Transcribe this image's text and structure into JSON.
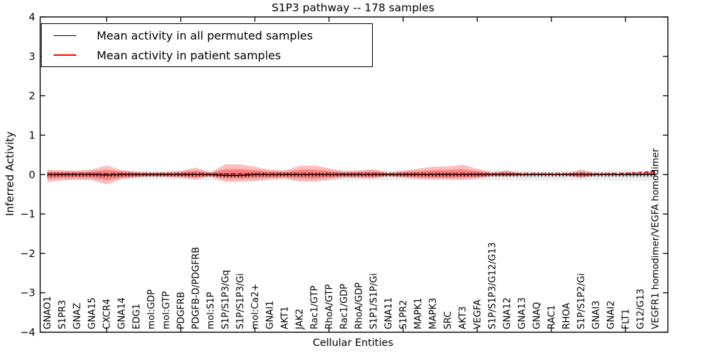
{
  "title": "S1P3 pathway -- 178 samples",
  "legend": [
    {
      "label": "Mean activity in all permuted samples",
      "color": "#000000"
    },
    {
      "label": "Mean activity in patient samples",
      "color": "#ff0000"
    }
  ],
  "colors": {
    "patient_line": "#ff0000",
    "permuted_line": "#000000",
    "patient_band": "#ff0000",
    "permuted_band": "#999999",
    "axis": "#000000"
  },
  "chart_data": {
    "type": "line",
    "title": "S1P3 pathway -- 178 samples",
    "xlabel": "Cellular Entities",
    "ylabel": "Inferred Activity",
    "ylim": [
      -4,
      4
    ],
    "yticks": [
      -4,
      -3,
      -2,
      -1,
      0,
      1,
      2,
      3,
      4
    ],
    "grid": false,
    "legend_position": "upper left",
    "categories": [
      "GNAO1",
      "S1PR3",
      "GNAZ",
      "GNA15",
      "CXCR4",
      "GNA14",
      "EDG1",
      "mol:GDP",
      "mol:GTP",
      "PDGFRB",
      "PDGFB-D/PDGFRB",
      "mol:S1P",
      "S1P/S1P3/Gq",
      "S1P/S1P3/Gi",
      "mol:Ca2+",
      "GNAI1",
      "AKT1",
      "JAK2",
      "Rac1/GTP",
      "RhoA/GTP",
      "Rac1/GDP",
      "RhoA/GDP",
      "S1P1/S1P/Gi",
      "GNA11",
      "S1PR2",
      "MAPK1",
      "MAPK3",
      "SRC",
      "AKT3",
      "VEGFA",
      "S1P/S1P3/G12/G13",
      "GNA12",
      "GNA13",
      "GNAQ",
      "RAC1",
      "RHOA",
      "S1P/S1P2/Gi",
      "GNAI3",
      "GNAI2",
      "FLT1",
      "G12/G13",
      "VEGFR1 homodimer/VEGFA homodimer"
    ],
    "top_tick_indices": [
      4,
      9,
      14,
      19,
      24,
      29,
      34,
      39
    ],
    "series": [
      {
        "name": "Mean activity in all permuted samples",
        "color": "#000000",
        "values": [
          0,
          0,
          0,
          0,
          -0.01,
          0,
          0,
          0,
          0,
          0,
          0,
          0,
          -0.02,
          -0.02,
          0,
          0,
          0,
          0,
          0,
          0,
          0,
          0,
          0,
          0,
          0,
          0,
          0,
          0,
          0,
          0,
          0,
          0,
          0,
          0,
          0,
          0,
          0,
          0,
          0,
          0,
          0,
          0
        ]
      },
      {
        "name": "Mean activity in patient samples",
        "color": "#ff0000",
        "values": [
          0,
          0,
          0,
          0,
          0,
          0,
          0,
          0,
          0,
          0,
          0,
          0,
          0,
          0,
          0,
          0,
          0,
          0,
          0,
          0,
          0,
          0,
          0,
          0,
          0,
          0,
          0,
          0,
          0,
          0,
          0,
          0,
          0,
          0,
          0,
          0,
          0,
          0,
          0,
          0.01,
          0.03,
          0.06
        ]
      }
    ],
    "bands": [
      {
        "name": "permuted-range-outer",
        "color": "#999999",
        "opacity": 0.16,
        "upper": [
          0.1,
          0.1,
          0.1,
          0.11,
          0.11,
          0.1,
          0.1,
          0.1,
          0.1,
          0.11,
          0.12,
          0.12,
          0.12,
          0.13,
          0.13,
          0.13,
          0.12,
          0.12,
          0.12,
          0.12,
          0.12,
          0.12,
          0.11,
          0.11,
          0.11,
          0.12,
          0.12,
          0.12,
          0.12,
          0.11,
          0.11,
          0.11,
          0.1,
          0.1,
          0.1,
          0.1,
          0.1,
          0.1,
          0.11,
          0.11,
          0.11,
          0.11
        ],
        "lower": [
          -0.13,
          -0.13,
          -0.13,
          -0.13,
          -0.14,
          -0.13,
          -0.12,
          -0.12,
          -0.12,
          -0.13,
          -0.14,
          -0.14,
          -0.15,
          -0.15,
          -0.16,
          -0.16,
          -0.15,
          -0.16,
          -0.16,
          -0.15,
          -0.15,
          -0.15,
          -0.14,
          -0.14,
          -0.14,
          -0.14,
          -0.15,
          -0.15,
          -0.14,
          -0.14,
          -0.14,
          -0.14,
          -0.15,
          -0.15,
          -0.15,
          -0.14,
          -0.14,
          -0.14,
          -0.15,
          -0.16,
          -0.16,
          -0.15
        ]
      },
      {
        "name": "permuted-range-inner",
        "color": "#999999",
        "opacity": 0.16,
        "upper": [
          0.05,
          0.05,
          0.05,
          0.06,
          0.06,
          0.05,
          0.05,
          0.05,
          0.05,
          0.06,
          0.06,
          0.06,
          0.06,
          0.07,
          0.07,
          0.07,
          0.06,
          0.06,
          0.06,
          0.06,
          0.06,
          0.06,
          0.06,
          0.06,
          0.06,
          0.06,
          0.06,
          0.06,
          0.06,
          0.06,
          0.06,
          0.06,
          0.05,
          0.05,
          0.05,
          0.05,
          0.05,
          0.05,
          0.06,
          0.06,
          0.06,
          0.06
        ],
        "lower": [
          -0.07,
          -0.07,
          -0.07,
          -0.07,
          -0.07,
          -0.07,
          -0.06,
          -0.06,
          -0.06,
          -0.07,
          -0.07,
          -0.07,
          -0.08,
          -0.08,
          -0.08,
          -0.08,
          -0.08,
          -0.08,
          -0.08,
          -0.08,
          -0.08,
          -0.08,
          -0.07,
          -0.07,
          -0.07,
          -0.07,
          -0.08,
          -0.08,
          -0.07,
          -0.07,
          -0.07,
          -0.07,
          -0.08,
          -0.08,
          -0.08,
          -0.07,
          -0.07,
          -0.07,
          -0.08,
          -0.08,
          -0.08,
          -0.08
        ]
      },
      {
        "name": "patient-range-outer",
        "color": "#ff0000",
        "opacity": 0.25,
        "upper": [
          0.12,
          0.11,
          0.1,
          0.13,
          0.23,
          0.12,
          0.07,
          0.05,
          0.06,
          0.09,
          0.18,
          0.05,
          0.26,
          0.26,
          0.2,
          0.12,
          0.1,
          0.22,
          0.23,
          0.16,
          0.08,
          0.1,
          0.14,
          0.04,
          0.1,
          0.15,
          0.2,
          0.21,
          0.25,
          0.15,
          0.05,
          0.11,
          0.03,
          0.02,
          0.02,
          0.02,
          0.13,
          0.02,
          0.02,
          0.02,
          0.03,
          0.1
        ],
        "lower": [
          -0.19,
          -0.15,
          -0.13,
          -0.14,
          -0.25,
          -0.12,
          -0.07,
          -0.05,
          -0.06,
          -0.08,
          -0.12,
          -0.05,
          -0.18,
          -0.18,
          -0.16,
          -0.12,
          -0.1,
          -0.17,
          -0.18,
          -0.13,
          -0.08,
          -0.09,
          -0.1,
          -0.04,
          -0.08,
          -0.11,
          -0.12,
          -0.12,
          -0.13,
          -0.1,
          -0.04,
          -0.05,
          -0.03,
          -0.02,
          -0.02,
          -0.02,
          -0.09,
          -0.02,
          -0.02,
          -0.02,
          -0.02,
          0.02
        ]
      },
      {
        "name": "patient-range-inner",
        "color": "#ff0000",
        "opacity": 0.25,
        "upper": [
          0.07,
          0.06,
          0.06,
          0.07,
          0.13,
          0.07,
          0.04,
          0.03,
          0.03,
          0.05,
          0.1,
          0.03,
          0.14,
          0.14,
          0.11,
          0.07,
          0.06,
          0.12,
          0.13,
          0.09,
          0.04,
          0.06,
          0.08,
          0.02,
          0.06,
          0.08,
          0.11,
          0.12,
          0.14,
          0.08,
          0.03,
          0.06,
          0.02,
          0.01,
          0.01,
          0.01,
          0.07,
          0.01,
          0.01,
          0.01,
          0.02,
          0.08
        ],
        "lower": [
          -0.11,
          -0.08,
          -0.07,
          -0.08,
          -0.14,
          -0.07,
          -0.04,
          -0.03,
          -0.03,
          -0.04,
          -0.07,
          -0.03,
          -0.1,
          -0.1,
          -0.09,
          -0.07,
          -0.06,
          -0.09,
          -0.1,
          -0.07,
          -0.04,
          -0.05,
          -0.06,
          -0.02,
          -0.04,
          -0.06,
          -0.07,
          -0.07,
          -0.07,
          -0.06,
          -0.02,
          -0.03,
          -0.02,
          -0.01,
          -0.01,
          -0.01,
          -0.05,
          -0.01,
          -0.01,
          -0.01,
          -0.01,
          0.04
        ]
      }
    ]
  }
}
